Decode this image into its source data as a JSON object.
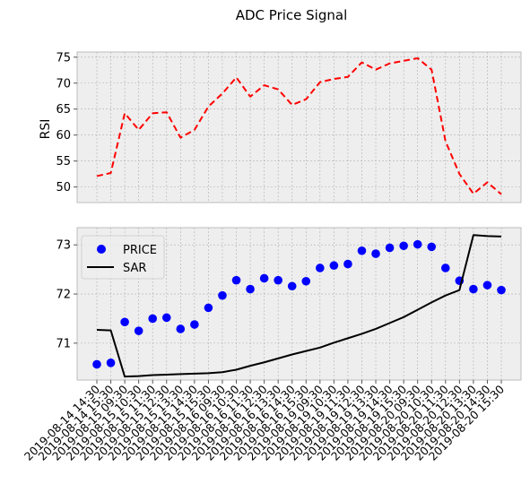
{
  "figure": {
    "title": "ADC Price Signal"
  },
  "colors": {
    "rsi": "#ff0000",
    "price": "#0000ff",
    "sar": "#000000",
    "panel_bg": "#eeeeee",
    "grid": "#b0b0b0",
    "axis": "#bcbcbc"
  },
  "chart_data": [
    {
      "type": "line",
      "ylabel": "RSI",
      "ylim": [
        47,
        76
      ],
      "yticks": [
        50,
        55,
        60,
        65,
        70,
        75
      ],
      "grid": true,
      "series": [
        {
          "name": "",
          "style": "dashed",
          "color": "#ff0000",
          "values": [
            52.1,
            52.7,
            64.2,
            61.0,
            64.2,
            64.4,
            59.5,
            61.0,
            65.5,
            68.0,
            71.1,
            67.4,
            69.6,
            68.8,
            65.8,
            66.9,
            70.2,
            70.8,
            71.2,
            74.0,
            72.6,
            73.8,
            74.3,
            74.8,
            72.6,
            58.8,
            52.5,
            48.7,
            50.9,
            48.6
          ]
        }
      ]
    },
    {
      "type": "line",
      "ylabel": "",
      "ylim": [
        70.25,
        73.35
      ],
      "yticks": [
        71,
        72,
        73
      ],
      "grid": true,
      "legend": "top-left",
      "x": [
        "2019-08-14 14:30",
        "2019-08-14 15:30",
        "2019-08-15 09:30",
        "2019-08-15 10:30",
        "2019-08-15 11:30",
        "2019-08-15 12:30",
        "2019-08-15 13:30",
        "2019-08-15 14:30",
        "2019-08-15 15:30",
        "2019-08-16 09:30",
        "2019-08-16 10:30",
        "2019-08-16 11:30",
        "2019-08-16 12:30",
        "2019-08-16 13:30",
        "2019-08-16 14:30",
        "2019-08-16 15:30",
        "2019-08-19 09:30",
        "2019-08-19 10:30",
        "2019-08-19 11:30",
        "2019-08-19 12:30",
        "2019-08-19 13:30",
        "2019-08-19 14:30",
        "2019-08-19 15:30",
        "2019-08-20 09:30",
        "2019-08-20 10:30",
        "2019-08-20 11:30",
        "2019-08-20 12:30",
        "2019-08-20 13:30",
        "2019-08-20 14:30",
        "2019-08-20 15:30"
      ],
      "series": [
        {
          "name": "PRICE",
          "style": "markers",
          "color": "#0000ff",
          "values": [
            70.57,
            70.6,
            71.43,
            71.25,
            71.5,
            71.52,
            71.29,
            71.38,
            71.72,
            71.97,
            72.28,
            72.1,
            72.32,
            72.28,
            72.16,
            72.26,
            72.53,
            72.58,
            72.61,
            72.88,
            72.82,
            72.94,
            72.98,
            73.01,
            72.96,
            72.53,
            72.27,
            72.1,
            72.18,
            72.08
          ]
        },
        {
          "name": "SAR",
          "style": "solid",
          "color": "#000000",
          "values": [
            71.27,
            71.26,
            70.32,
            70.33,
            70.35,
            70.36,
            70.37,
            70.38,
            70.39,
            70.41,
            70.46,
            70.54,
            70.61,
            70.69,
            70.77,
            70.84,
            70.91,
            71.01,
            71.1,
            71.19,
            71.29,
            71.41,
            71.53,
            71.68,
            71.83,
            71.97,
            72.08,
            73.2,
            73.18,
            73.17
          ]
        }
      ]
    }
  ]
}
